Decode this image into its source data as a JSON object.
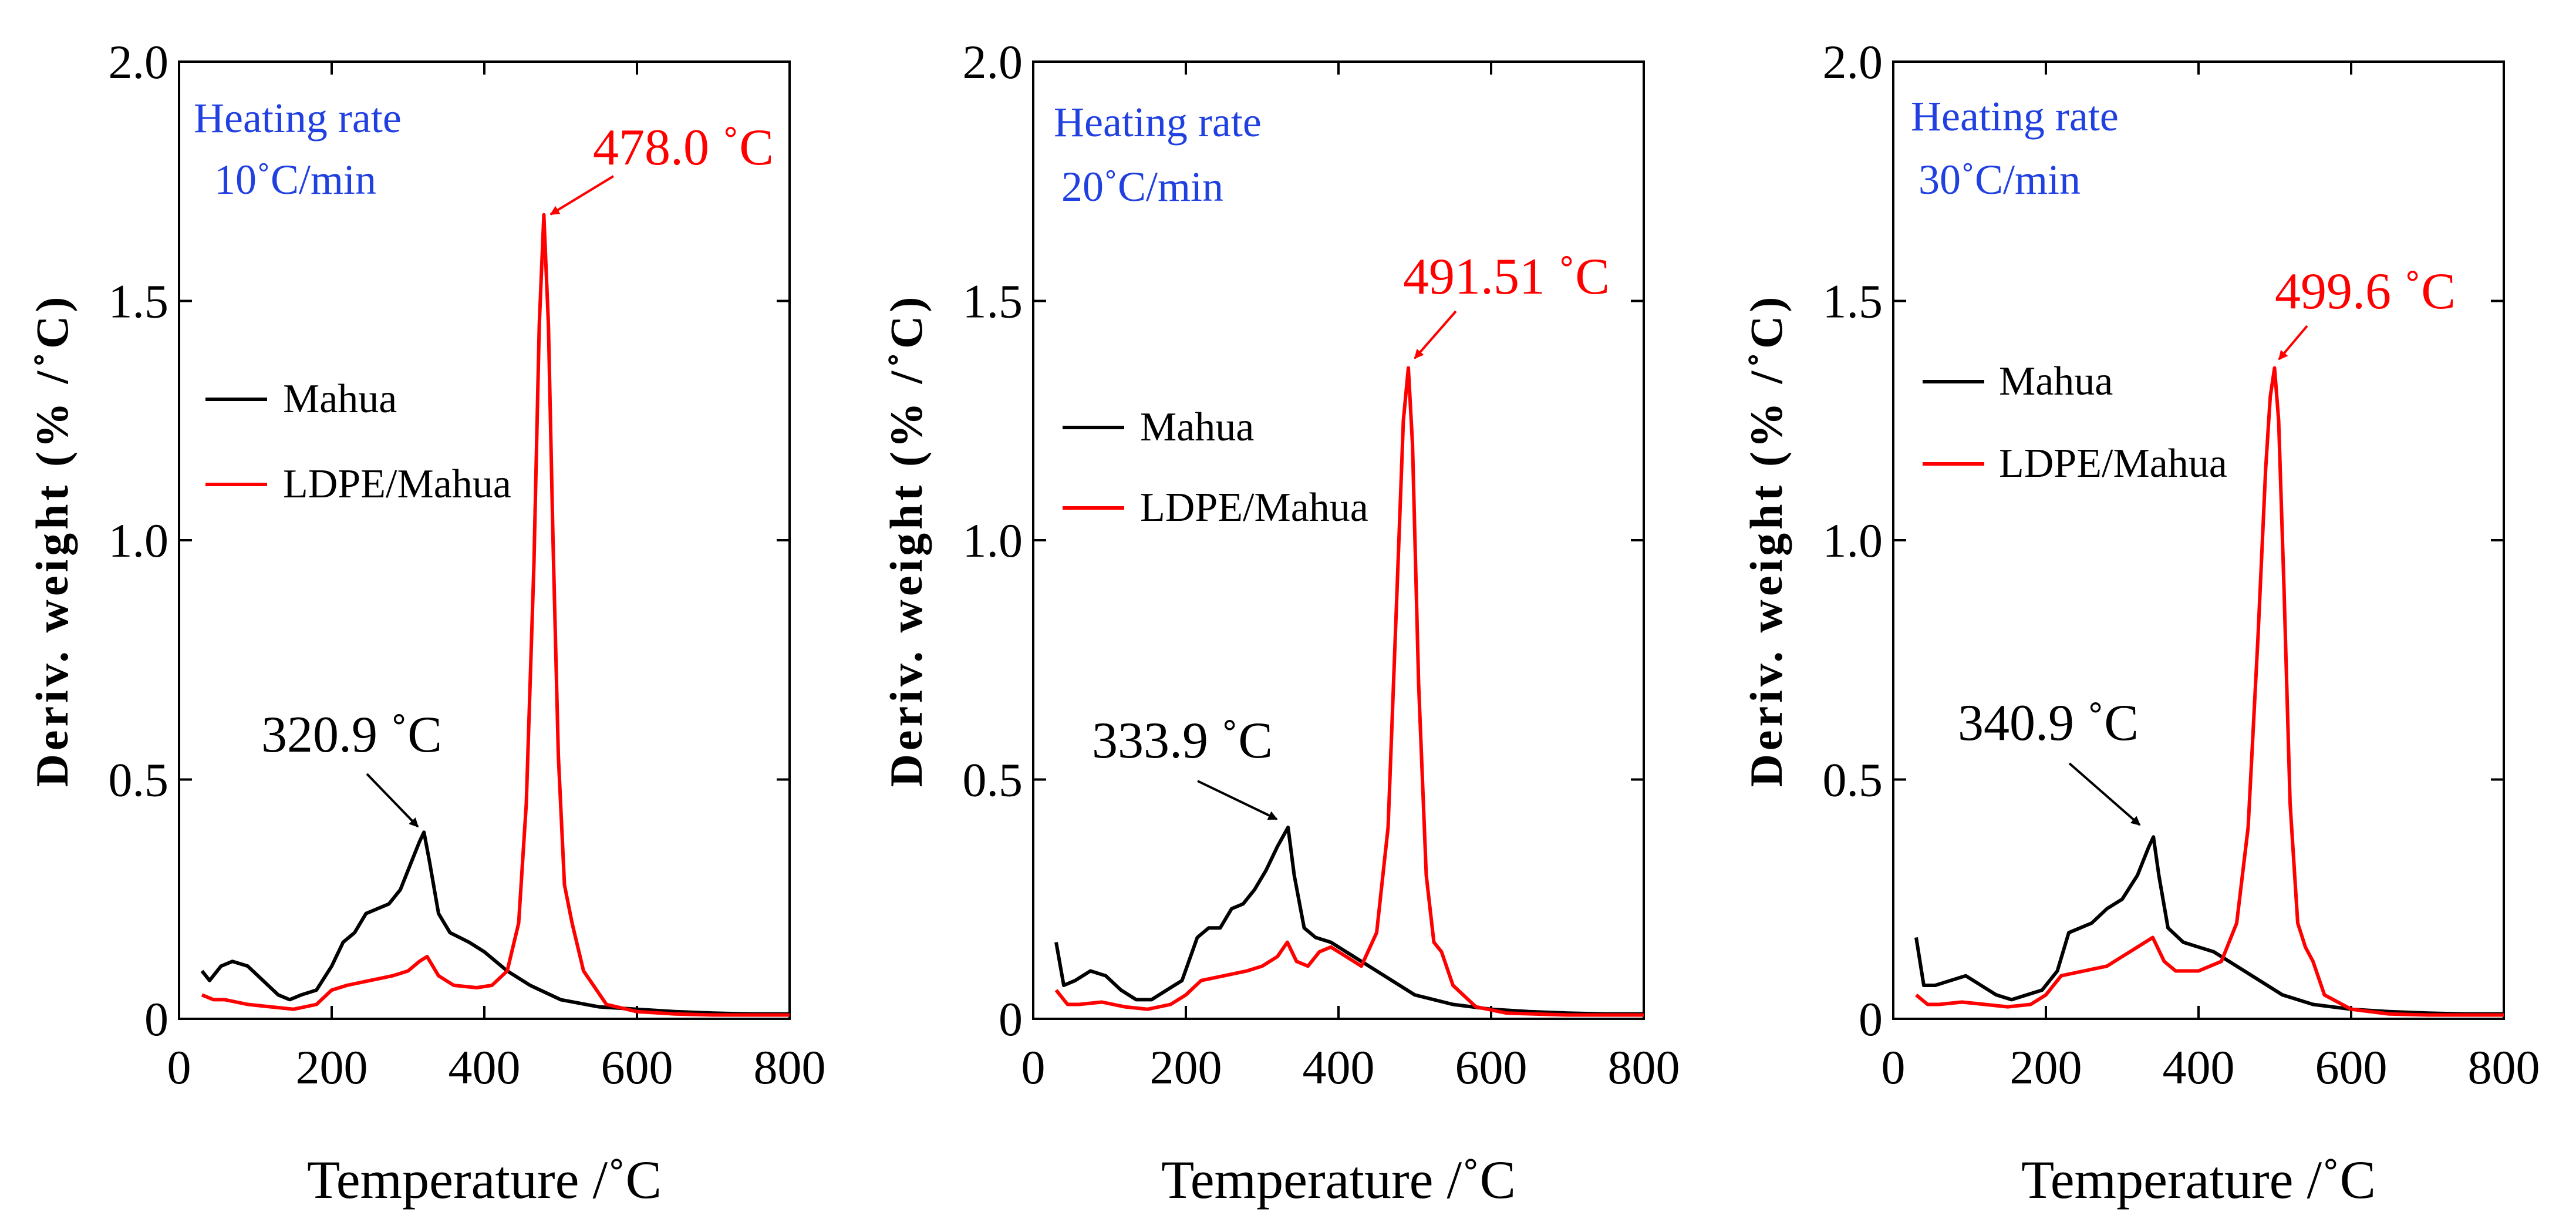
{
  "colors": {
    "mahua": "#000000",
    "ldpe_mahua": "#ff0000",
    "heating_rate_text": "#2040e0",
    "axis": "#000000"
  },
  "panels": [
    {
      "heating_rate_line1": "Heating rate",
      "heating_rate_line2": "10˚C/min",
      "legend": [
        "Mahua",
        "LDPE/Mahua"
      ],
      "mahua_peak_label": "320.9 ˚C",
      "ldpe_peak_label": "478.0 ˚C"
    },
    {
      "heating_rate_line1": "Heating rate",
      "heating_rate_line2": "20˚C/min",
      "legend": [
        "Mahua",
        "LDPE/Mahua"
      ],
      "mahua_peak_label": "333.9 ˚C",
      "ldpe_peak_label": "491.51 ˚C"
    },
    {
      "heating_rate_line1": "Heating rate",
      "heating_rate_line2": "30˚C/min",
      "legend": [
        "Mahua",
        "LDPE/Mahua"
      ],
      "mahua_peak_label": "340.9 ˚C",
      "ldpe_peak_label": "499.6 ˚C"
    }
  ],
  "chart_data": [
    {
      "type": "line",
      "xlabel": "Temperature /˚C",
      "ylabel": "Deriv. weight (% /˚C)",
      "xlim": [
        0,
        800
      ],
      "ylim": [
        0,
        2.0
      ],
      "x_ticks": [
        "0",
        "200",
        "400",
        "600",
        "800"
      ],
      "y_ticks": [
        "0",
        "0.5",
        "1.0",
        "1.5",
        "2.0"
      ],
      "grid": false,
      "legend_position": "middle-left",
      "series": [
        {
          "name": "Mahua",
          "x": [
            30,
            40,
            55,
            70,
            90,
            110,
            130,
            145,
            160,
            180,
            200,
            215,
            230,
            245,
            260,
            275,
            290,
            305,
            315,
            320.9,
            328,
            340,
            355,
            380,
            400,
            430,
            460,
            500,
            550,
            600,
            650,
            700,
            750,
            800
          ],
          "y": [
            0.1,
            0.08,
            0.11,
            0.12,
            0.11,
            0.08,
            0.05,
            0.04,
            0.05,
            0.06,
            0.11,
            0.16,
            0.18,
            0.22,
            0.23,
            0.24,
            0.27,
            0.33,
            0.37,
            0.39,
            0.33,
            0.22,
            0.18,
            0.16,
            0.14,
            0.1,
            0.07,
            0.04,
            0.025,
            0.02,
            0.015,
            0.012,
            0.01,
            0.01
          ]
        },
        {
          "name": "LDPE/Mahua",
          "x": [
            30,
            45,
            60,
            90,
            120,
            150,
            180,
            200,
            220,
            250,
            280,
            300,
            315,
            325,
            340,
            360,
            390,
            410,
            430,
            445,
            455,
            465,
            472,
            478.0,
            484,
            490,
            497,
            505,
            515,
            530,
            560,
            600,
            650,
            700,
            800
          ],
          "y": [
            0.05,
            0.04,
            0.04,
            0.03,
            0.025,
            0.02,
            0.03,
            0.06,
            0.07,
            0.08,
            0.09,
            0.1,
            0.12,
            0.13,
            0.09,
            0.07,
            0.065,
            0.07,
            0.1,
            0.2,
            0.45,
            0.95,
            1.45,
            1.68,
            1.45,
            1.0,
            0.55,
            0.28,
            0.2,
            0.1,
            0.03,
            0.015,
            0.01,
            0.008,
            0.008
          ]
        }
      ],
      "annotations": [
        {
          "text": "320.9 ˚C",
          "x": 320.9,
          "y": 0.39
        },
        {
          "text": "478.0 ˚C",
          "x": 478.0,
          "y": 1.68
        }
      ]
    },
    {
      "type": "line",
      "xlabel": "Temperature /˚C",
      "ylabel": "Deriv. weight (% /˚C)",
      "xlim": [
        0,
        800
      ],
      "ylim": [
        0,
        2.0
      ],
      "x_ticks": [
        "0",
        "200",
        "400",
        "600",
        "800"
      ],
      "y_ticks": [
        "0",
        "0.5",
        "1.0",
        "1.5",
        "2.0"
      ],
      "grid": false,
      "legend_position": "middle-left",
      "series": [
        {
          "name": "Mahua",
          "x": [
            30,
            40,
            55,
            75,
            95,
            115,
            135,
            155,
            175,
            195,
            215,
            230,
            245,
            260,
            275,
            290,
            305,
            320,
            333.9,
            342,
            355,
            370,
            390,
            410,
            440,
            470,
            500,
            550,
            600,
            650,
            700,
            750,
            800
          ],
          "y": [
            0.16,
            0.07,
            0.08,
            0.1,
            0.09,
            0.06,
            0.04,
            0.04,
            0.06,
            0.08,
            0.17,
            0.19,
            0.19,
            0.23,
            0.24,
            0.27,
            0.31,
            0.36,
            0.4,
            0.3,
            0.19,
            0.17,
            0.16,
            0.14,
            0.11,
            0.08,
            0.05,
            0.03,
            0.02,
            0.015,
            0.012,
            0.01,
            0.01
          ]
        },
        {
          "name": "LDPE/Mahua",
          "x": [
            30,
            45,
            60,
            90,
            120,
            150,
            180,
            200,
            220,
            250,
            280,
            300,
            320,
            333,
            345,
            360,
            375,
            390,
            410,
            430,
            450,
            465,
            478,
            485,
            491.51,
            497,
            505,
            515,
            525,
            535,
            550,
            580,
            620,
            700,
            800
          ],
          "y": [
            0.06,
            0.03,
            0.03,
            0.035,
            0.025,
            0.02,
            0.03,
            0.05,
            0.08,
            0.09,
            0.1,
            0.11,
            0.13,
            0.16,
            0.12,
            0.11,
            0.14,
            0.15,
            0.13,
            0.11,
            0.18,
            0.4,
            0.95,
            1.25,
            1.36,
            1.2,
            0.7,
            0.3,
            0.16,
            0.14,
            0.07,
            0.025,
            0.012,
            0.008,
            0.008
          ]
        }
      ],
      "annotations": [
        {
          "text": "333.9 ˚C",
          "x": 333.9,
          "y": 0.4
        },
        {
          "text": "491.51 ˚C",
          "x": 491.51,
          "y": 1.36
        }
      ]
    },
    {
      "type": "line",
      "xlabel": "Temperature /˚C",
      "ylabel": "Deriv. weight (% /˚C)",
      "xlim": [
        0,
        800
      ],
      "ylim": [
        0,
        2.0
      ],
      "x_ticks": [
        "0",
        "200",
        "400",
        "600",
        "800"
      ],
      "y_ticks": [
        "0",
        "0.5",
        "1.0",
        "1.5",
        "2.0"
      ],
      "grid": false,
      "legend_position": "middle-left",
      "series": [
        {
          "name": "Mahua",
          "x": [
            30,
            40,
            55,
            75,
            95,
            115,
            135,
            155,
            175,
            195,
            215,
            230,
            245,
            260,
            280,
            300,
            320,
            335,
            340.9,
            348,
            360,
            380,
            400,
            420,
            450,
            480,
            510,
            550,
            600,
            650,
            700,
            750,
            800
          ],
          "y": [
            0.17,
            0.07,
            0.07,
            0.08,
            0.09,
            0.07,
            0.05,
            0.04,
            0.05,
            0.06,
            0.1,
            0.18,
            0.19,
            0.2,
            0.23,
            0.25,
            0.3,
            0.36,
            0.38,
            0.3,
            0.19,
            0.16,
            0.15,
            0.14,
            0.11,
            0.08,
            0.05,
            0.03,
            0.02,
            0.015,
            0.012,
            0.01,
            0.01
          ]
        },
        {
          "name": "LDPE/Mahua",
          "x": [
            30,
            45,
            60,
            90,
            120,
            150,
            180,
            200,
            220,
            250,
            280,
            300,
            320,
            340,
            355,
            370,
            400,
            430,
            450,
            465,
            478,
            488,
            494,
            499.6,
            505,
            512,
            520,
            530,
            540,
            550,
            565,
            600,
            650,
            700,
            800
          ],
          "y": [
            0.05,
            0.03,
            0.03,
            0.035,
            0.03,
            0.025,
            0.03,
            0.05,
            0.09,
            0.1,
            0.11,
            0.13,
            0.15,
            0.17,
            0.12,
            0.1,
            0.1,
            0.12,
            0.2,
            0.4,
            0.8,
            1.15,
            1.3,
            1.36,
            1.25,
            0.9,
            0.45,
            0.2,
            0.15,
            0.12,
            0.05,
            0.02,
            0.01,
            0.008,
            0.008
          ]
        }
      ],
      "annotations": [
        {
          "text": "340.9 ˚C",
          "x": 340.9,
          "y": 0.38
        },
        {
          "text": "499.6 ˚C",
          "x": 499.6,
          "y": 1.36
        }
      ]
    }
  ]
}
